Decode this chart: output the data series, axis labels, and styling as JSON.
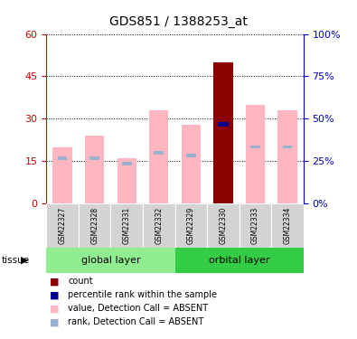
{
  "title": "GDS851 / 1388253_at",
  "samples": [
    "GSM22327",
    "GSM22328",
    "GSM22331",
    "GSM22332",
    "GSM22329",
    "GSM22330",
    "GSM22333",
    "GSM22334"
  ],
  "value_absent": [
    20,
    24,
    16,
    33,
    28,
    0,
    35,
    33
  ],
  "rank_absent_top": [
    16,
    16,
    14,
    18,
    17,
    0,
    20,
    20
  ],
  "count_val": [
    0,
    0,
    0,
    0,
    0,
    50,
    0,
    0
  ],
  "percentile_rank": [
    0,
    0,
    0,
    0,
    0,
    28,
    0,
    0
  ],
  "percentile_segment_height": [
    0,
    0,
    0,
    0,
    0,
    1.5,
    0,
    0
  ],
  "ylim_left": [
    0,
    60
  ],
  "ylim_right": [
    0,
    100
  ],
  "yticks_left": [
    0,
    15,
    30,
    45,
    60
  ],
  "yticks_right": [
    0,
    25,
    50,
    75,
    100
  ],
  "color_count": "#8B0000",
  "color_percentile": "#00008B",
  "color_value_absent": "#FFB6C1",
  "color_rank_absent": "#9ab0d0",
  "bg_color": "#ffffff",
  "plot_bg": "#ffffff",
  "tick_color_left": "#cc0000",
  "tick_color_right": "#0000cc",
  "global_layer_color": "#90EE90",
  "orbital_layer_color": "#33CC44",
  "label_bg_color": "#d3d3d3"
}
